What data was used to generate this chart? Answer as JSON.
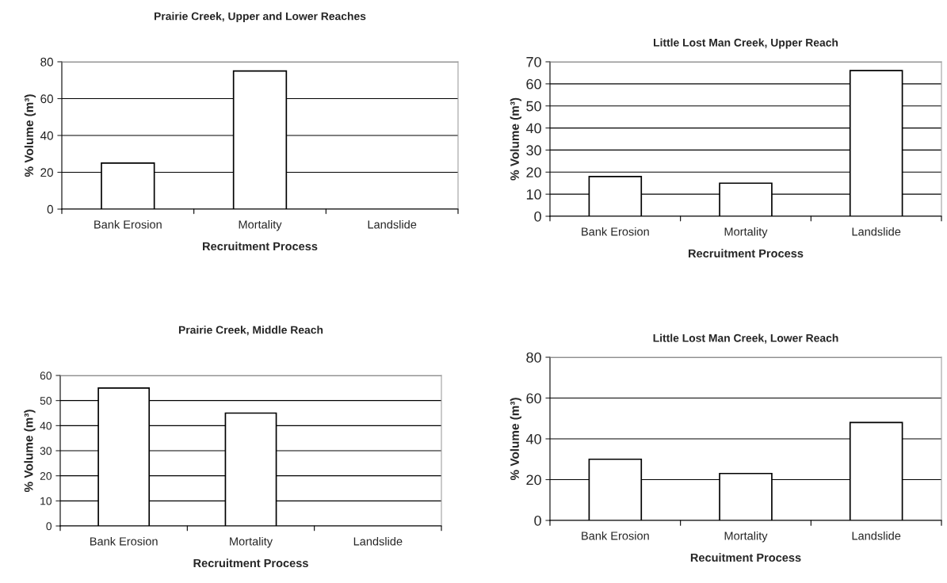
{
  "chart_data": [
    {
      "type": "bar",
      "title": "Prairie Creek, Upper and Lower Reaches",
      "xlabel": "Recruitment Process",
      "ylabel": "% Volume (m³)",
      "categories": [
        "Bank Erosion",
        "Mortality",
        "Landslide"
      ],
      "values": [
        25,
        75,
        null
      ],
      "color": "#ffffff",
      "ylim": [
        0,
        80
      ],
      "yticks": [
        0,
        20,
        40,
        60,
        80
      ],
      "grid": "y"
    },
    {
      "type": "bar",
      "title": "Little Lost Man Creek, Upper Reach",
      "xlabel": "Recruitment Process",
      "ylabel": "% Volume (m³)",
      "categories": [
        "Bank Erosion",
        "Mortality",
        "Landslide"
      ],
      "values": [
        18,
        15,
        66
      ],
      "color": "#ffffff",
      "ylim": [
        0,
        70
      ],
      "yticks": [
        0,
        10,
        20,
        30,
        40,
        50,
        60,
        70
      ],
      "grid": "y"
    },
    {
      "type": "bar",
      "title": "Prairie Creek, Middle Reach",
      "xlabel": "Recruitment Process",
      "ylabel": "% Volume (m³)",
      "categories": [
        "Bank Erosion",
        "Mortality",
        "Landslide"
      ],
      "values": [
        55,
        45,
        null
      ],
      "color": "#ffffff",
      "ylim": [
        0,
        60
      ],
      "yticks": [
        0,
        10,
        20,
        30,
        40,
        50,
        60
      ],
      "grid": "y"
    },
    {
      "type": "bar",
      "title": "Little Lost Man Creek, Lower Reach",
      "xlabel": "Recuitment Process",
      "ylabel": "% Volume (m³)",
      "categories": [
        "Bank Erosion",
        "Mortality",
        "Landslide"
      ],
      "values": [
        30,
        23,
        48
      ],
      "color": "#ffffff",
      "ylim": [
        0,
        80
      ],
      "yticks": [
        0,
        20,
        40,
        60,
        80
      ],
      "grid": "y"
    }
  ]
}
